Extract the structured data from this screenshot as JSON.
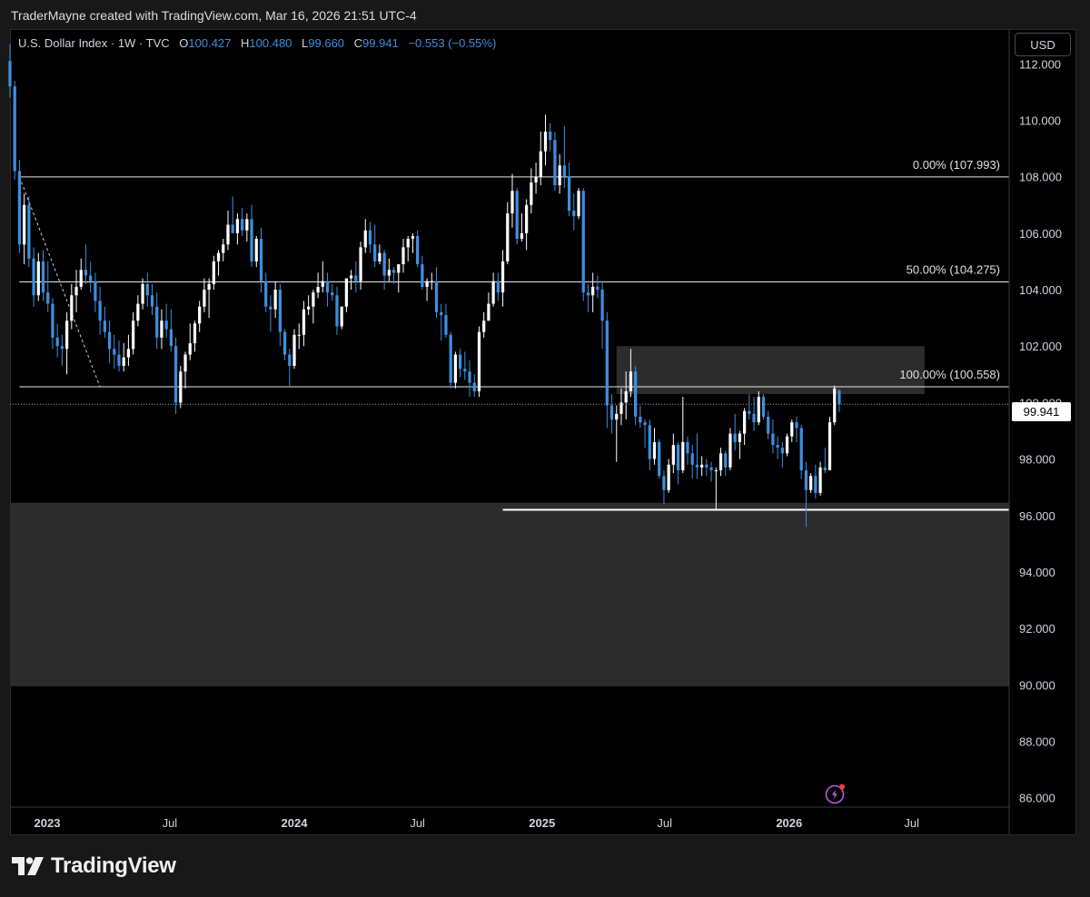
{
  "caption": "TraderMayne created with TradingView.com, Mar 16, 2026 21:51 UTC-4",
  "legend": {
    "symbol": "U.S. Dollar Index · 1W · TVC",
    "open_label": "O",
    "open": "100.427",
    "high_label": "H",
    "high": "100.480",
    "low_label": "L",
    "low": "99.660",
    "close_label": "C",
    "close": "99.941",
    "change": "−0.553 (−0.55%)"
  },
  "currency_button": "USD",
  "last_price_tag": "99.941",
  "brand": {
    "name": "TradingView",
    "logo_icon": "tradingview-logo-icon"
  },
  "alert_icon": "lightning-alert-icon",
  "colors": {
    "up": "#ffffff",
    "down": "#3d8fe0",
    "zone": "#2c2c2c",
    "background": "#000000"
  },
  "chart_data": {
    "type": "candlestick",
    "title": "U.S. Dollar Index",
    "timeframe": "1W",
    "ylim": [
      85.7,
      113.2
    ],
    "y_ticks": [
      "112.000",
      "110.000",
      "108.000",
      "106.000",
      "104.000",
      "102.000",
      "100.000",
      "98.000",
      "96.000",
      "94.000",
      "92.000",
      "90.000",
      "88.000",
      "86.000"
    ],
    "x_ticks": [
      {
        "label": "2023",
        "date": "2023-01-01",
        "bold": true
      },
      {
        "label": "Jul",
        "date": "2023-07-01",
        "bold": false
      },
      {
        "label": "2024",
        "date": "2024-01-01",
        "bold": true
      },
      {
        "label": "Jul",
        "date": "2024-07-01",
        "bold": false
      },
      {
        "label": "2025",
        "date": "2025-01-01",
        "bold": true
      },
      {
        "label": "Jul",
        "date": "2025-07-01",
        "bold": false
      },
      {
        "label": "2026",
        "date": "2026-01-01",
        "bold": true
      },
      {
        "label": "Jul",
        "date": "2026-07-01",
        "bold": false
      }
    ],
    "xlim": [
      "2022-11-07",
      "2026-11-22"
    ],
    "fib_levels": [
      {
        "label": "0.00% (107.993)",
        "price": 107.993,
        "start": "2022-11-21"
      },
      {
        "label": "50.00% (104.275)",
        "price": 104.275,
        "start": "2022-11-21"
      },
      {
        "label": "100.00% (100.558)",
        "price": 100.558,
        "start": "2022-11-21"
      }
    ],
    "fib_trend_line": {
      "from": [
        "2022-11-21",
        107.993
      ],
      "to": [
        "2023-03-20",
        100.558
      ]
    },
    "support_line": {
      "price": 96.2,
      "start": "2024-11-04"
    },
    "zones": [
      {
        "name": "supply-zone",
        "top": 102.0,
        "bottom": 100.3,
        "start": "2025-04-21",
        "end": "2026-07-20"
      },
      {
        "name": "demand-zone",
        "top": 96.45,
        "bottom": 89.95,
        "start": "2022-11-07",
        "end": "2026-11-22"
      }
    ],
    "last_price": 99.941,
    "candles": [
      [
        "2022-11-07",
        112.1,
        112.7,
        110.8,
        111.2
      ],
      [
        "2022-11-14",
        111.2,
        111.4,
        107.9,
        108.2
      ],
      [
        "2022-11-21",
        108.2,
        108.6,
        105.3,
        105.6
      ],
      [
        "2022-11-28",
        105.6,
        107.4,
        104.9,
        107.0
      ],
      [
        "2022-12-05",
        107.0,
        107.3,
        104.8,
        105.1
      ],
      [
        "2022-12-12",
        105.1,
        105.5,
        103.4,
        103.8
      ],
      [
        "2022-12-19",
        103.8,
        105.3,
        103.6,
        105.0
      ],
      [
        "2022-12-26",
        105.0,
        105.4,
        103.6,
        103.9
      ],
      [
        "2023-01-02",
        103.9,
        105.0,
        103.2,
        103.5
      ],
      [
        "2023-01-09",
        103.5,
        103.7,
        101.9,
        102.3
      ],
      [
        "2023-01-16",
        102.3,
        102.8,
        101.6,
        102.0
      ],
      [
        "2023-01-23",
        102.0,
        102.4,
        101.3,
        101.9
      ],
      [
        "2023-01-30",
        101.9,
        103.2,
        101.0,
        102.9
      ],
      [
        "2023-02-06",
        102.9,
        104.2,
        102.6,
        103.8
      ],
      [
        "2023-02-13",
        103.8,
        104.7,
        103.2,
        104.1
      ],
      [
        "2023-02-20",
        104.1,
        105.1,
        104.0,
        104.7
      ],
      [
        "2023-02-27",
        104.7,
        105.6,
        104.2,
        104.5
      ],
      [
        "2023-03-06",
        104.5,
        105.0,
        103.9,
        104.3
      ],
      [
        "2023-03-13",
        104.3,
        104.6,
        103.2,
        103.6
      ],
      [
        "2023-03-20",
        103.6,
        104.1,
        102.4,
        102.9
      ],
      [
        "2023-03-27",
        102.9,
        103.4,
        102.3,
        102.5
      ],
      [
        "2023-04-03",
        102.5,
        102.9,
        101.4,
        101.9
      ],
      [
        "2023-04-10",
        101.9,
        102.4,
        101.2,
        101.7
      ],
      [
        "2023-04-17",
        101.7,
        102.2,
        101.1,
        101.3
      ],
      [
        "2023-04-24",
        101.3,
        102.1,
        101.1,
        101.6
      ],
      [
        "2023-05-01",
        101.6,
        102.4,
        101.3,
        101.9
      ],
      [
        "2023-05-08",
        101.9,
        103.2,
        101.7,
        102.9
      ],
      [
        "2023-05-15",
        102.9,
        103.8,
        102.7,
        103.5
      ],
      [
        "2023-05-22",
        103.5,
        104.4,
        103.3,
        104.2
      ],
      [
        "2023-05-29",
        104.2,
        104.6,
        103.4,
        103.8
      ],
      [
        "2023-06-05",
        103.8,
        104.2,
        103.1,
        103.4
      ],
      [
        "2023-06-12",
        103.4,
        103.9,
        101.9,
        102.3
      ],
      [
        "2023-06-19",
        102.3,
        103.3,
        101.9,
        102.9
      ],
      [
        "2023-06-26",
        102.9,
        103.5,
        102.3,
        102.6
      ],
      [
        "2023-07-03",
        102.6,
        103.3,
        101.8,
        102.0
      ],
      [
        "2023-07-10",
        102.0,
        102.3,
        99.6,
        100.0
      ],
      [
        "2023-07-17",
        100.0,
        101.3,
        99.8,
        101.1
      ],
      [
        "2023-07-24",
        101.1,
        101.8,
        100.5,
        101.7
      ],
      [
        "2023-07-31",
        101.7,
        102.8,
        101.5,
        102.1
      ],
      [
        "2023-08-07",
        102.1,
        102.9,
        101.8,
        102.8
      ],
      [
        "2023-08-14",
        102.8,
        103.6,
        102.5,
        103.4
      ],
      [
        "2023-08-21",
        103.4,
        104.4,
        103.2,
        104.0
      ],
      [
        "2023-08-28",
        104.0,
        104.4,
        103.0,
        104.2
      ],
      [
        "2023-09-04",
        104.2,
        105.2,
        104.0,
        105.0
      ],
      [
        "2023-09-11",
        105.0,
        105.4,
        104.5,
        105.3
      ],
      [
        "2023-09-18",
        105.3,
        105.8,
        105.0,
        105.6
      ],
      [
        "2023-09-25",
        105.6,
        106.8,
        105.4,
        106.3
      ],
      [
        "2023-10-02",
        106.3,
        107.3,
        106.0,
        106.0
      ],
      [
        "2023-10-09",
        106.0,
        106.7,
        105.6,
        106.5
      ],
      [
        "2023-10-16",
        106.5,
        106.9,
        105.9,
        106.1
      ],
      [
        "2023-10-23",
        106.1,
        106.7,
        105.7,
        106.5
      ],
      [
        "2023-10-30",
        106.5,
        107.0,
        104.8,
        105.0
      ],
      [
        "2023-11-06",
        105.0,
        105.9,
        104.8,
        105.8
      ],
      [
        "2023-11-13",
        105.8,
        106.2,
        103.9,
        104.3
      ],
      [
        "2023-11-20",
        104.3,
        104.6,
        103.2,
        103.4
      ],
      [
        "2023-11-27",
        103.4,
        103.8,
        102.5,
        103.3
      ],
      [
        "2023-12-04",
        103.3,
        104.3,
        103.0,
        104.0
      ],
      [
        "2023-12-11",
        104.0,
        104.2,
        102.0,
        102.5
      ],
      [
        "2023-12-18",
        102.5,
        102.6,
        101.5,
        101.7
      ],
      [
        "2023-12-25",
        101.7,
        101.9,
        100.6,
        101.3
      ],
      [
        "2024-01-01",
        101.3,
        102.6,
        101.2,
        102.4
      ],
      [
        "2024-01-08",
        102.4,
        102.8,
        101.9,
        102.4
      ],
      [
        "2024-01-15",
        102.4,
        103.6,
        102.0,
        103.3
      ],
      [
        "2024-01-22",
        103.3,
        103.8,
        103.1,
        103.4
      ],
      [
        "2024-01-29",
        103.4,
        104.0,
        102.8,
        103.9
      ],
      [
        "2024-02-05",
        103.9,
        104.6,
        103.7,
        104.1
      ],
      [
        "2024-02-12",
        104.1,
        105.0,
        103.9,
        104.3
      ],
      [
        "2024-02-19",
        104.3,
        104.6,
        103.4,
        103.9
      ],
      [
        "2024-02-26",
        103.9,
        104.2,
        103.6,
        103.8
      ],
      [
        "2024-03-04",
        103.8,
        104.1,
        102.4,
        102.7
      ],
      [
        "2024-03-11",
        102.7,
        103.4,
        102.6,
        103.4
      ],
      [
        "2024-03-18",
        103.4,
        104.3,
        103.2,
        104.4
      ],
      [
        "2024-03-25",
        104.4,
        104.7,
        104.0,
        104.5
      ],
      [
        "2024-04-01",
        104.5,
        105.0,
        103.9,
        104.3
      ],
      [
        "2024-04-08",
        104.3,
        105.7,
        104.0,
        105.5
      ],
      [
        "2024-04-15",
        105.5,
        106.5,
        105.3,
        106.1
      ],
      [
        "2024-04-22",
        106.1,
        106.4,
        105.3,
        105.6
      ],
      [
        "2024-04-29",
        105.6,
        106.3,
        104.8,
        105.0
      ],
      [
        "2024-05-06",
        105.0,
        105.6,
        104.9,
        105.3
      ],
      [
        "2024-05-13",
        105.3,
        105.4,
        104.0,
        104.5
      ],
      [
        "2024-05-20",
        104.5,
        105.1,
        104.3,
        104.7
      ],
      [
        "2024-05-27",
        104.7,
        104.8,
        104.2,
        104.6
      ],
      [
        "2024-06-03",
        104.6,
        104.9,
        103.9,
        104.9
      ],
      [
        "2024-06-10",
        104.9,
        105.8,
        104.6,
        105.5
      ],
      [
        "2024-06-17",
        105.5,
        105.9,
        105.0,
        105.8
      ],
      [
        "2024-06-24",
        105.8,
        106.0,
        105.3,
        105.9
      ],
      [
        "2024-07-01",
        105.9,
        106.1,
        104.8,
        104.9
      ],
      [
        "2024-07-08",
        104.9,
        105.2,
        104.0,
        104.1
      ],
      [
        "2024-07-15",
        104.1,
        104.4,
        103.6,
        104.3
      ],
      [
        "2024-07-22",
        104.3,
        104.6,
        104.0,
        104.3
      ],
      [
        "2024-07-29",
        104.3,
        104.8,
        103.0,
        103.2
      ],
      [
        "2024-08-05",
        103.2,
        103.5,
        102.2,
        103.1
      ],
      [
        "2024-08-12",
        103.1,
        103.5,
        102.3,
        102.4
      ],
      [
        "2024-08-19",
        102.4,
        102.5,
        100.5,
        100.7
      ],
      [
        "2024-08-26",
        100.7,
        101.8,
        100.5,
        101.7
      ],
      [
        "2024-09-02",
        101.7,
        101.9,
        100.9,
        101.2
      ],
      [
        "2024-09-09",
        101.2,
        101.8,
        100.8,
        101.1
      ],
      [
        "2024-09-16",
        101.1,
        101.5,
        100.2,
        100.7
      ],
      [
        "2024-09-23",
        100.7,
        101.0,
        100.2,
        100.4
      ],
      [
        "2024-09-30",
        100.4,
        102.7,
        100.2,
        102.5
      ],
      [
        "2024-10-07",
        102.5,
        103.2,
        102.3,
        102.9
      ],
      [
        "2024-10-14",
        102.9,
        103.9,
        102.9,
        103.5
      ],
      [
        "2024-10-21",
        103.5,
        104.6,
        103.4,
        104.3
      ],
      [
        "2024-10-28",
        104.3,
        104.6,
        103.6,
        103.9
      ],
      [
        "2024-11-04",
        103.9,
        105.4,
        103.4,
        105.0
      ],
      [
        "2024-11-11",
        105.0,
        107.1,
        104.9,
        106.7
      ],
      [
        "2024-11-18",
        106.7,
        108.1,
        106.2,
        107.5
      ],
      [
        "2024-11-25",
        107.5,
        107.6,
        105.6,
        105.8
      ],
      [
        "2024-12-02",
        105.8,
        106.7,
        105.7,
        106.0
      ],
      [
        "2024-12-09",
        106.0,
        107.2,
        105.4,
        107.0
      ],
      [
        "2024-12-16",
        107.0,
        108.3,
        106.7,
        107.8
      ],
      [
        "2024-12-23",
        107.8,
        108.5,
        107.4,
        108.0
      ],
      [
        "2024-12-30",
        108.0,
        109.6,
        107.7,
        108.9
      ],
      [
        "2025-01-06",
        108.9,
        110.2,
        108.4,
        109.6
      ],
      [
        "2025-01-13",
        109.6,
        109.9,
        108.9,
        109.3
      ],
      [
        "2025-01-20",
        109.3,
        109.6,
        107.5,
        107.7
      ],
      [
        "2025-01-27",
        107.7,
        108.8,
        107.4,
        108.4
      ],
      [
        "2025-02-03",
        108.4,
        109.8,
        107.6,
        108.0
      ],
      [
        "2025-02-10",
        108.0,
        108.5,
        106.6,
        106.8
      ],
      [
        "2025-02-17",
        106.8,
        107.4,
        106.1,
        106.6
      ],
      [
        "2025-02-24",
        106.6,
        107.6,
        106.5,
        107.5
      ],
      [
        "2025-03-03",
        107.5,
        107.6,
        103.6,
        103.9
      ],
      [
        "2025-03-10",
        103.9,
        104.2,
        103.2,
        103.8
      ],
      [
        "2025-03-17",
        103.8,
        104.6,
        103.2,
        104.1
      ],
      [
        "2025-03-24",
        104.1,
        104.5,
        103.7,
        104.0
      ],
      [
        "2025-03-31",
        104.0,
        104.3,
        101.9,
        102.9
      ],
      [
        "2025-04-07",
        102.9,
        103.2,
        99.1,
        99.9
      ],
      [
        "2025-04-14",
        99.9,
        100.3,
        98.9,
        99.4
      ],
      [
        "2025-04-21",
        99.4,
        99.9,
        97.9,
        99.6
      ],
      [
        "2025-04-28",
        99.6,
        100.5,
        99.2,
        100.0
      ],
      [
        "2025-05-05",
        100.0,
        101.1,
        99.4,
        100.4
      ],
      [
        "2025-05-12",
        100.4,
        101.9,
        100.2,
        101.1
      ],
      [
        "2025-05-19",
        101.1,
        101.3,
        99.2,
        99.5
      ],
      [
        "2025-05-26",
        99.5,
        99.9,
        99.1,
        99.3
      ],
      [
        "2025-06-02",
        99.3,
        99.4,
        98.4,
        99.2
      ],
      [
        "2025-06-09",
        99.2,
        99.4,
        97.6,
        98.0
      ],
      [
        "2025-06-16",
        98.0,
        99.1,
        97.8,
        98.6
      ],
      [
        "2025-06-23",
        98.6,
        98.7,
        97.3,
        97.4
      ],
      [
        "2025-06-30",
        97.4,
        97.6,
        96.4,
        96.9
      ],
      [
        "2025-07-07",
        96.9,
        98.0,
        96.8,
        97.8
      ],
      [
        "2025-07-14",
        97.8,
        98.9,
        97.5,
        98.5
      ],
      [
        "2025-07-21",
        98.5,
        98.6,
        97.1,
        97.6
      ],
      [
        "2025-07-28",
        97.6,
        100.2,
        97.5,
        98.6
      ],
      [
        "2025-08-04",
        98.6,
        98.8,
        97.8,
        98.2
      ],
      [
        "2025-08-11",
        98.2,
        98.5,
        97.3,
        97.8
      ],
      [
        "2025-08-18",
        97.8,
        98.9,
        97.3,
        97.7
      ],
      [
        "2025-08-25",
        97.7,
        98.1,
        97.4,
        97.8
      ],
      [
        "2025-09-01",
        97.8,
        98.0,
        97.4,
        97.7
      ],
      [
        "2025-09-08",
        97.7,
        97.9,
        97.2,
        97.6
      ],
      [
        "2025-09-15",
        97.6,
        97.7,
        96.2,
        97.6
      ],
      [
        "2025-09-22",
        97.6,
        98.4,
        97.4,
        98.2
      ],
      [
        "2025-09-29",
        98.2,
        98.3,
        97.4,
        97.7
      ],
      [
        "2025-10-06",
        97.7,
        99.1,
        97.6,
        98.9
      ],
      [
        "2025-10-13",
        98.9,
        99.6,
        98.3,
        98.6
      ],
      [
        "2025-10-20",
        98.6,
        99.0,
        98.0,
        98.9
      ],
      [
        "2025-10-27",
        98.9,
        99.8,
        98.5,
        99.7
      ],
      [
        "2025-11-03",
        99.7,
        100.3,
        99.4,
        99.6
      ],
      [
        "2025-11-10",
        99.6,
        100.2,
        99.0,
        99.3
      ],
      [
        "2025-11-17",
        99.3,
        100.4,
        99.2,
        100.2
      ],
      [
        "2025-11-24",
        100.2,
        100.3,
        99.4,
        99.5
      ],
      [
        "2025-12-01",
        99.5,
        99.7,
        98.7,
        98.9
      ],
      [
        "2025-12-08",
        98.9,
        99.4,
        98.2,
        98.5
      ],
      [
        "2025-12-15",
        98.5,
        98.8,
        98.0,
        98.4
      ],
      [
        "2025-12-22",
        98.4,
        98.6,
        97.7,
        98.2
      ],
      [
        "2025-12-29",
        98.2,
        98.9,
        98.1,
        98.8
      ],
      [
        "2026-01-05",
        98.8,
        99.4,
        98.6,
        99.3
      ],
      [
        "2026-01-12",
        99.3,
        99.5,
        98.6,
        99.1
      ],
      [
        "2026-01-19",
        99.1,
        99.2,
        97.3,
        97.6
      ],
      [
        "2026-01-26",
        97.6,
        97.9,
        95.6,
        96.9
      ],
      [
        "2026-02-02",
        96.9,
        97.5,
        96.8,
        97.4
      ],
      [
        "2026-02-09",
        97.4,
        97.8,
        96.6,
        96.8
      ],
      [
        "2026-02-16",
        96.8,
        97.9,
        96.7,
        97.7
      ],
      [
        "2026-02-23",
        97.7,
        98.4,
        97.5,
        97.6
      ],
      [
        "2026-03-02",
        97.6,
        99.5,
        97.6,
        99.3
      ],
      [
        "2026-03-09",
        99.3,
        100.6,
        99.2,
        100.5
      ],
      [
        "2026-03-16",
        100.427,
        100.48,
        99.66,
        99.941
      ]
    ]
  }
}
